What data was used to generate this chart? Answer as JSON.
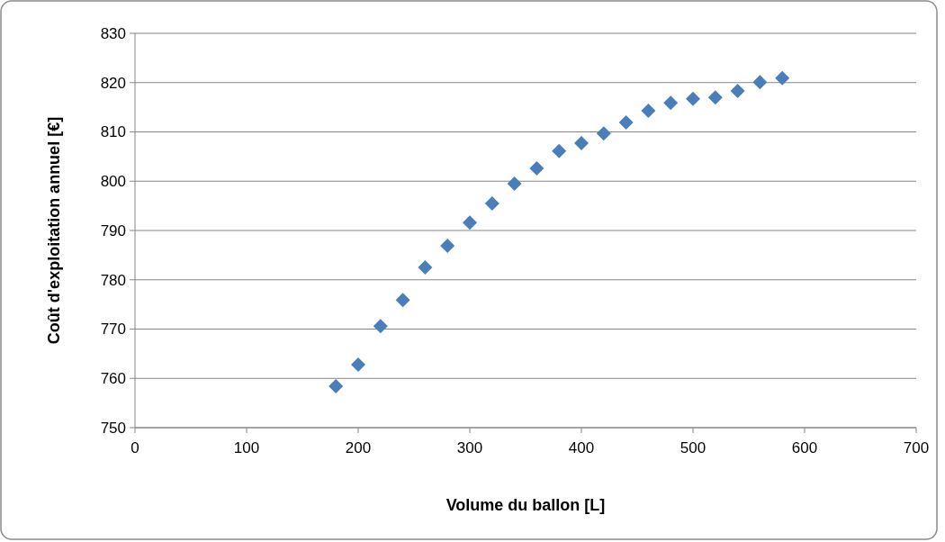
{
  "chart_data": {
    "type": "scatter",
    "xlabel": "Volume du ballon [L]",
    "ylabel": "Coût d'exploitation annuel [€]",
    "x": [
      180,
      200,
      220,
      240,
      260,
      280,
      300,
      320,
      340,
      360,
      380,
      400,
      420,
      440,
      460,
      480,
      500,
      520,
      540,
      560,
      580
    ],
    "series": [
      {
        "color": "#4a7ebb",
        "values": [
          758.4,
          762.8,
          770.6,
          775.9,
          782.5,
          786.9,
          791.6,
          795.5,
          799.5,
          802.6,
          806.1,
          807.7,
          809.7,
          811.9,
          814.3,
          815.9,
          816.7,
          817.0,
          818.3,
          820.1,
          820.9
        ]
      }
    ],
    "xlim": [
      0,
      700
    ],
    "xticks": [
      0,
      100,
      200,
      300,
      400,
      500,
      600,
      700
    ],
    "ylim": [
      750,
      830
    ],
    "yticks": [
      750,
      760,
      770,
      780,
      790,
      800,
      810,
      820,
      830
    ],
    "grid": "y",
    "marker": "diamond"
  }
}
